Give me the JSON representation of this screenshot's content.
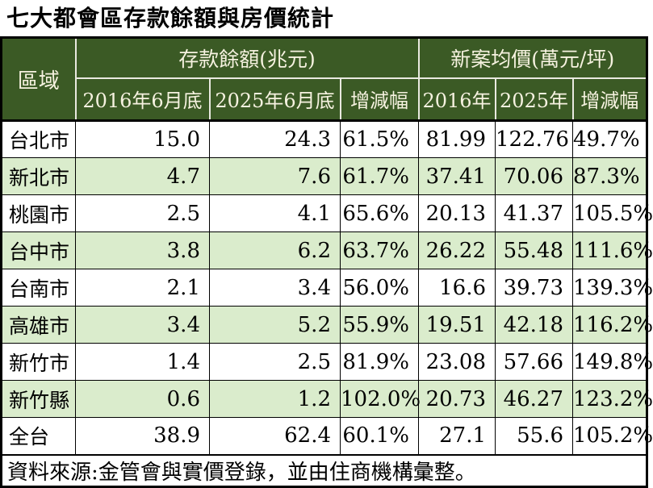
{
  "title": "七大都會區存款餘額與房價統計",
  "colors": {
    "header_background": "#3b5a25",
    "header_text": "#f6f2e0",
    "stripe_green": "#daeccc",
    "grid_black": "#000000",
    "header_inner_border": "#e9e9e0"
  },
  "chart_data": {
    "type": "table",
    "title": "七大都會區存款餘額與房價統計",
    "corner_header": "區域",
    "column_groups": [
      {
        "label": "存款餘額(兆元)",
        "span": 3
      },
      {
        "label": "新案均價(萬元/坪)",
        "span": 3
      }
    ],
    "sub_headers": [
      "2016年6月底",
      "2025年6月底",
      "增減幅",
      "2016年",
      "2025年",
      "增減幅"
    ],
    "rows": [
      {
        "region": "台北市",
        "values": [
          "15.0",
          "24.3",
          "61.5%",
          "81.99",
          "122.76",
          "49.7%"
        ]
      },
      {
        "region": "新北市",
        "values": [
          "4.7",
          "7.6",
          "61.7%",
          "37.41",
          "70.06",
          "87.3%"
        ]
      },
      {
        "region": "桃園市",
        "values": [
          "2.5",
          "4.1",
          "65.6%",
          "20.13",
          "41.37",
          "105.5%"
        ]
      },
      {
        "region": "台中市",
        "values": [
          "3.8",
          "6.2",
          "63.7%",
          "26.22",
          "55.48",
          "111.6%"
        ]
      },
      {
        "region": "台南市",
        "values": [
          "2.1",
          "3.4",
          "56.0%",
          "16.6",
          "39.73",
          "139.3%"
        ]
      },
      {
        "region": "高雄市",
        "values": [
          "3.4",
          "5.2",
          "55.9%",
          "19.51",
          "42.18",
          "116.2%"
        ]
      },
      {
        "region": "新竹市",
        "values": [
          "1.4",
          "2.5",
          "81.9%",
          "23.08",
          "57.66",
          "149.8%"
        ]
      },
      {
        "region": "新竹縣",
        "values": [
          "0.6",
          "1.2",
          "102.0%",
          "20.73",
          "46.27",
          "123.2%"
        ]
      },
      {
        "region": "全台",
        "values": [
          "38.9",
          "62.4",
          "60.1%",
          "27.1",
          "55.6",
          "105.2%"
        ]
      }
    ],
    "source_note": "資料來源:金管會與實價登錄，並由住商機構彙整。"
  }
}
